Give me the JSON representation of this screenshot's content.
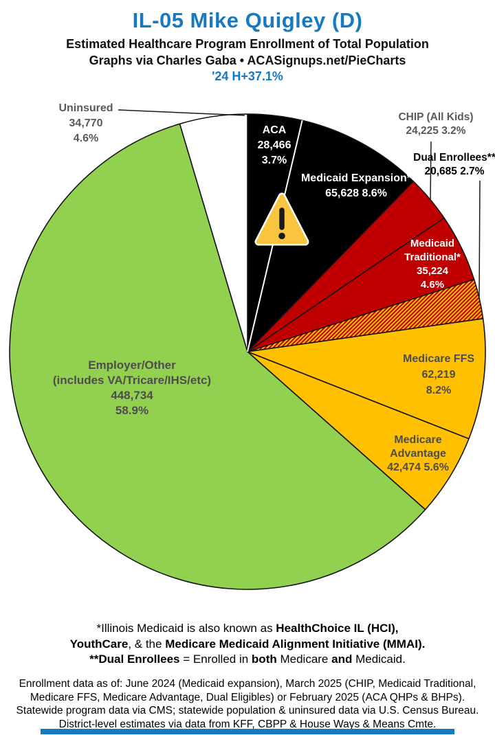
{
  "header": {
    "title": "IL-05 Mike Quigley (D)",
    "subtitle": "Estimated Healthcare Program Enrollment of Total Population",
    "credit": "Graphs via Charles Gaba • ACASignups.net/PieCharts",
    "metric": "'24 H+37.1%",
    "accent_color": "#1779C0"
  },
  "chart_data": {
    "type": "pie",
    "start_angle_deg": 0,
    "clockwise": true,
    "legend_position": "labels-on-and-around-slices",
    "slices": [
      {
        "label": "ACA",
        "value": "28,466",
        "pct": 3.7,
        "pct_label": "3.7%",
        "color": "#000000",
        "divider_after": "#ffffff"
      },
      {
        "label": "Medicaid Expansion*",
        "value": "65,628",
        "pct": 8.6,
        "pct_label": "8.6%",
        "color": "#000000"
      },
      {
        "label": "CHIP (All Kids)",
        "value": "24,225",
        "pct": 3.2,
        "pct_label": "3.2%",
        "color": "#C00000"
      },
      {
        "label": "Medicaid Traditional*",
        "value": "35,224",
        "pct": 4.6,
        "pct_label": "4.6%",
        "color": "#C00000"
      },
      {
        "label": "Dual Enrollees**",
        "value": "20,685",
        "pct": 2.7,
        "pct_label": "2.7%",
        "color": "#C00000",
        "pattern": "red-yellow-hatch"
      },
      {
        "label": "Medicare FFS",
        "value": "62,219",
        "pct": 8.2,
        "pct_label": "8.2%",
        "color": "#FFC000"
      },
      {
        "label": "Medicare Advantage",
        "value": "42,474",
        "pct": 5.6,
        "pct_label": "5.6%",
        "color": "#FFC000"
      },
      {
        "label": "Employer/Other",
        "sublabel": "(includes VA/Tricare/IHS/etc)",
        "value": "448,734",
        "pct": 58.9,
        "pct_label": "58.9%",
        "color": "#92D050"
      },
      {
        "label": "Uninsured",
        "value": "34,770",
        "pct": 4.6,
        "pct_label": "4.6%",
        "color": "#FFFFFF"
      }
    ],
    "hatch_colors": [
      "#C00000",
      "#FFC000"
    ],
    "warning_icon": {
      "fill": "#F9C440",
      "mark_color": "#1a1a1a",
      "border": "#ffffff"
    }
  },
  "footnote1": {
    "line1": [
      {
        "text": "*Illinois Medicaid is also known as "
      },
      {
        "text": "HealthChoice IL (HCI),"
      }
    ],
    "line2": [
      {
        "text": "YouthCare"
      },
      {
        "text": ", & the "
      },
      {
        "text": "Medicare Medicaid Alignment Initiative (MMAI)."
      }
    ],
    "line3": [
      {
        "text": "**Dual Enrollees"
      },
      {
        "text": " = Enrolled in "
      },
      {
        "text": "both"
      },
      {
        "text": " Medicare "
      },
      {
        "text": "and"
      },
      {
        "text": " Medicaid."
      }
    ]
  },
  "footnote2": {
    "line1": "Enrollment data as of: June 2024 (Medicaid expansion), March 2025 (CHIP, Medicaid Traditional,",
    "line2": "Medicare FFS, Medicare Advantage, Dual Eligibles) or February 2025 (ACA QHPs & BHPs).",
    "line3": "Statewide program data via CMS; statewide population & uninsured data via U.S. Census Bureau.",
    "line4": "District-level estimates via data from KFF, CBPP & House Ways & Means Cmte."
  }
}
